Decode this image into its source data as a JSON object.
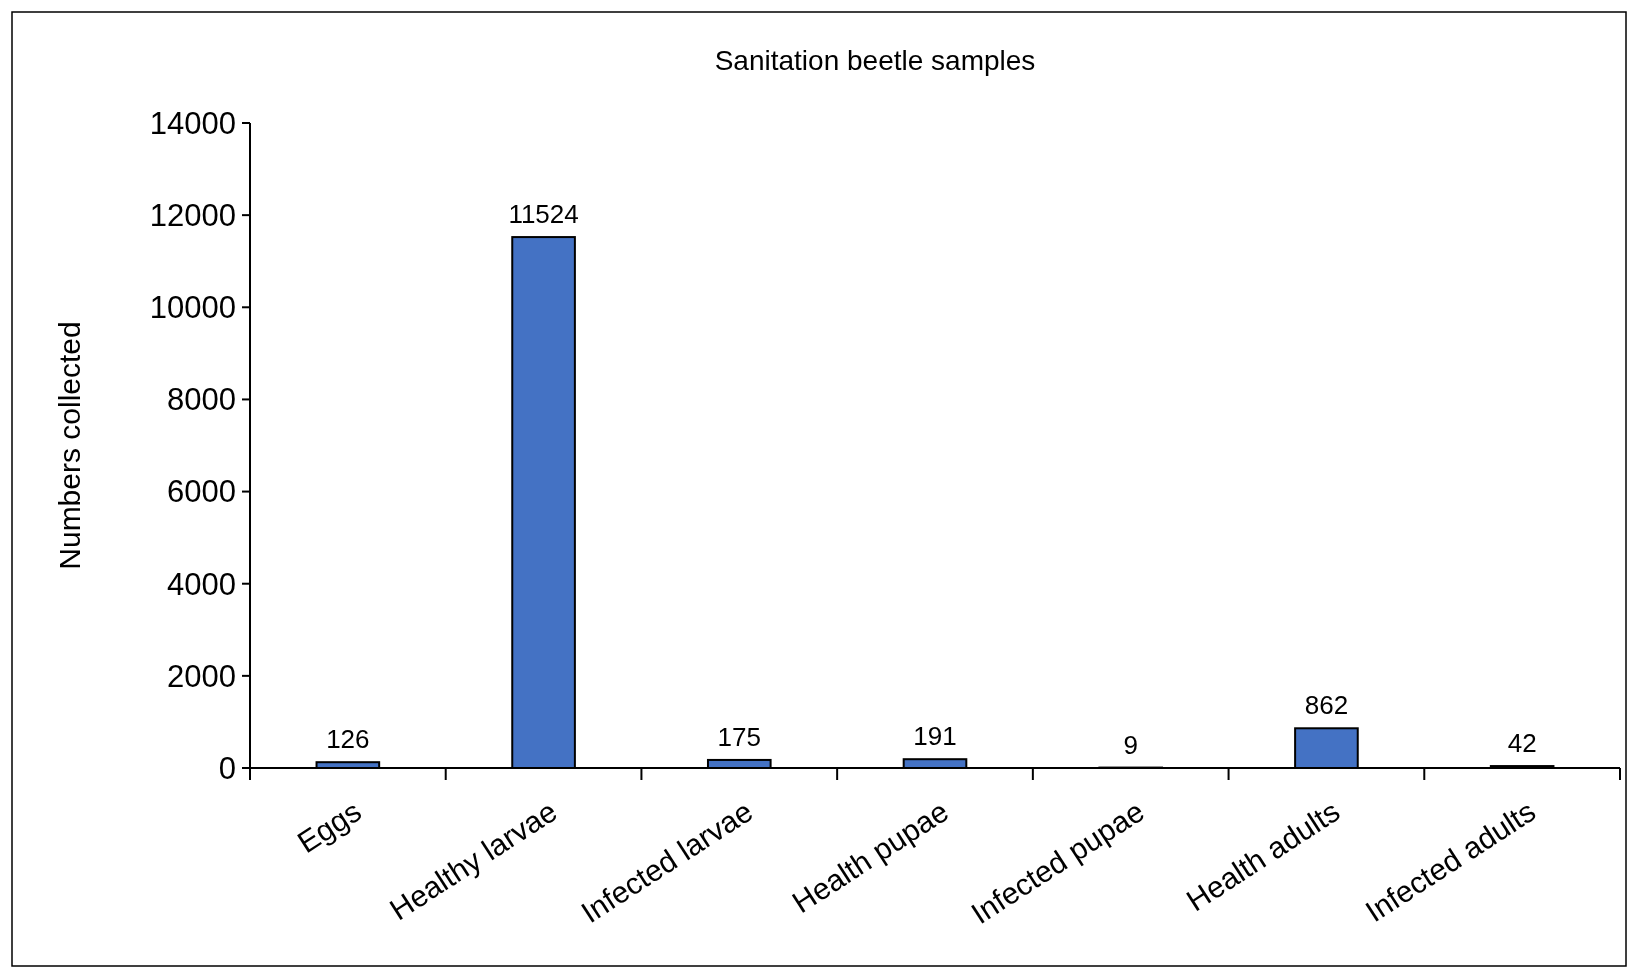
{
  "chart_data": {
    "type": "bar",
    "title": "Sanitation beetle samples",
    "ylabel": "Numbers collected",
    "categories": [
      "Eggs",
      "Healthy larvae",
      "Infected larvae",
      "Health pupae",
      "Infected pupae",
      "Health adults",
      "Infected adults"
    ],
    "values": [
      126,
      11524,
      175,
      191,
      9,
      862,
      42
    ],
    "color": "#4472c4",
    "ylim": [
      0,
      14000
    ],
    "yticks": [
      0,
      2000,
      4000,
      6000,
      8000,
      10000,
      12000,
      14000
    ],
    "data_labels": true
  }
}
